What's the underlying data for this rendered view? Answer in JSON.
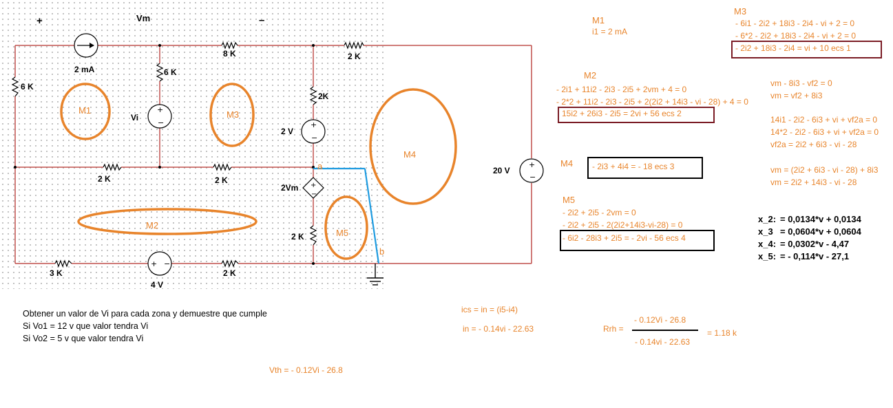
{
  "circuit": {
    "title_plus": "+",
    "title_vm": "Vm",
    "title_minus": "–",
    "src_current": "2 mA",
    "res_8k": "8 K",
    "res_2k_top": "2 K",
    "res_6k_left": "6 K",
    "res_6k_mid": "6 K",
    "vi_label": "Vi",
    "res_2k_mid": "2K",
    "src_2v": "2 V",
    "res_2k_h1": "2 K",
    "res_2k_h2": "2 K",
    "node_a": "a",
    "node_b": "b",
    "dep_src": "2Vm",
    "res_2k_low": "2 K",
    "src_20v": "20 V",
    "res_3k": "3 K",
    "src_4v": "4 V",
    "res_2k_bot": "2 K",
    "mesh_m1": "M1",
    "mesh_m2": "M2",
    "mesh_m3": "M3",
    "mesh_m4": "M4",
    "mesh_m5": "M5"
  },
  "problem": {
    "line1": "Obtener un valor de Vi para cada zona y demuestre que cumple",
    "line2": "Si Vo1 = 12 v que valor tendra Vi",
    "line3": "Si Vo2 = 5 v que valor tendra Vi"
  },
  "notes": {
    "vth": "Vth = - 0.12Vi - 26.8",
    "ics": "ics = in = (i5-i4)",
    "in": "in = - 0.14vi - 22.63",
    "rth_label": "Rrh =",
    "rth_num": "- 0.12Vi - 26.8",
    "rth_den": "- 0.14vi - 22.63",
    "rth_val": "= 1.18 k"
  },
  "m1": {
    "title": "M1",
    "eq": "i1 = 2 mA"
  },
  "m3": {
    "title": "M3",
    "eq1": "- 6i1 -  2i2 + 18i3 - 2i4 - vi + 2 = 0",
    "eq2": "- 6*2 -  2i2 + 18i3 - 2i4 - vi + 2 = 0",
    "eq3": "-  2i2 + 18i3 - 2i4  =  vi + 10     ecs 1"
  },
  "m2": {
    "title": "M2",
    "eq1": "- 2i1 + 11i2 - 2i3 - 2i5 + 2vm + 4 = 0",
    "eq2": "- 2*2 + 11i2 - 2i3 - 2i5 + 2(2i2 + 14i3 - vi - 28) + 4 = 0",
    "eq3": "15i2 + 26i3 - 2i5 = 2vi + 56   ecs 2"
  },
  "vm": {
    "eq1": "vm - 8i3 - vf2 = 0",
    "eq2": "vm = vf2 + 8i3",
    "eq3": "14i1 - 2i2 - 6i3 + vi + vf2a = 0",
    "eq4": "14*2 - 2i2 - 6i3 + vi + vf2a = 0",
    "eq5": "vf2a =  2i2 + 6i3 - vi - 28",
    "eq6": "vm = (2i2 + 6i3 - vi - 28) + 8i3",
    "eq7": "vm = 2i2 + 14i3 - vi - 28"
  },
  "m4": {
    "title": "M4",
    "eq": "- 2i3 + 4i4 = - 18  ecs 3"
  },
  "m5": {
    "title": "M5",
    "eq1": "- 2i2 + 2i5 - 2vm = 0",
    "eq2": "- 2i2 + 2i5 - 2(2i2+14i3-vi-28) = 0",
    "eq3": "- 6i2 - 28i3 + 2i5 = - 2vi - 56  ecs 4"
  },
  "results": {
    "x2_name": "x_2:",
    "x2_val": "=  0,0134*v + 0,0134",
    "x3_name": "x_3",
    "x3_val": "=  0,0604*v + 0,0604",
    "x4_name": "x_4:",
    "x4_val": "=  0,0302*v - 4,47",
    "x5_name": "x_5:",
    "x5_val": "=  - 0,114*v - 27,1"
  },
  "colors": {
    "orange": "#e8842b",
    "wire_red": "#c0504d",
    "blue": "#1e9be0",
    "box_dark": "#7a1b24"
  }
}
